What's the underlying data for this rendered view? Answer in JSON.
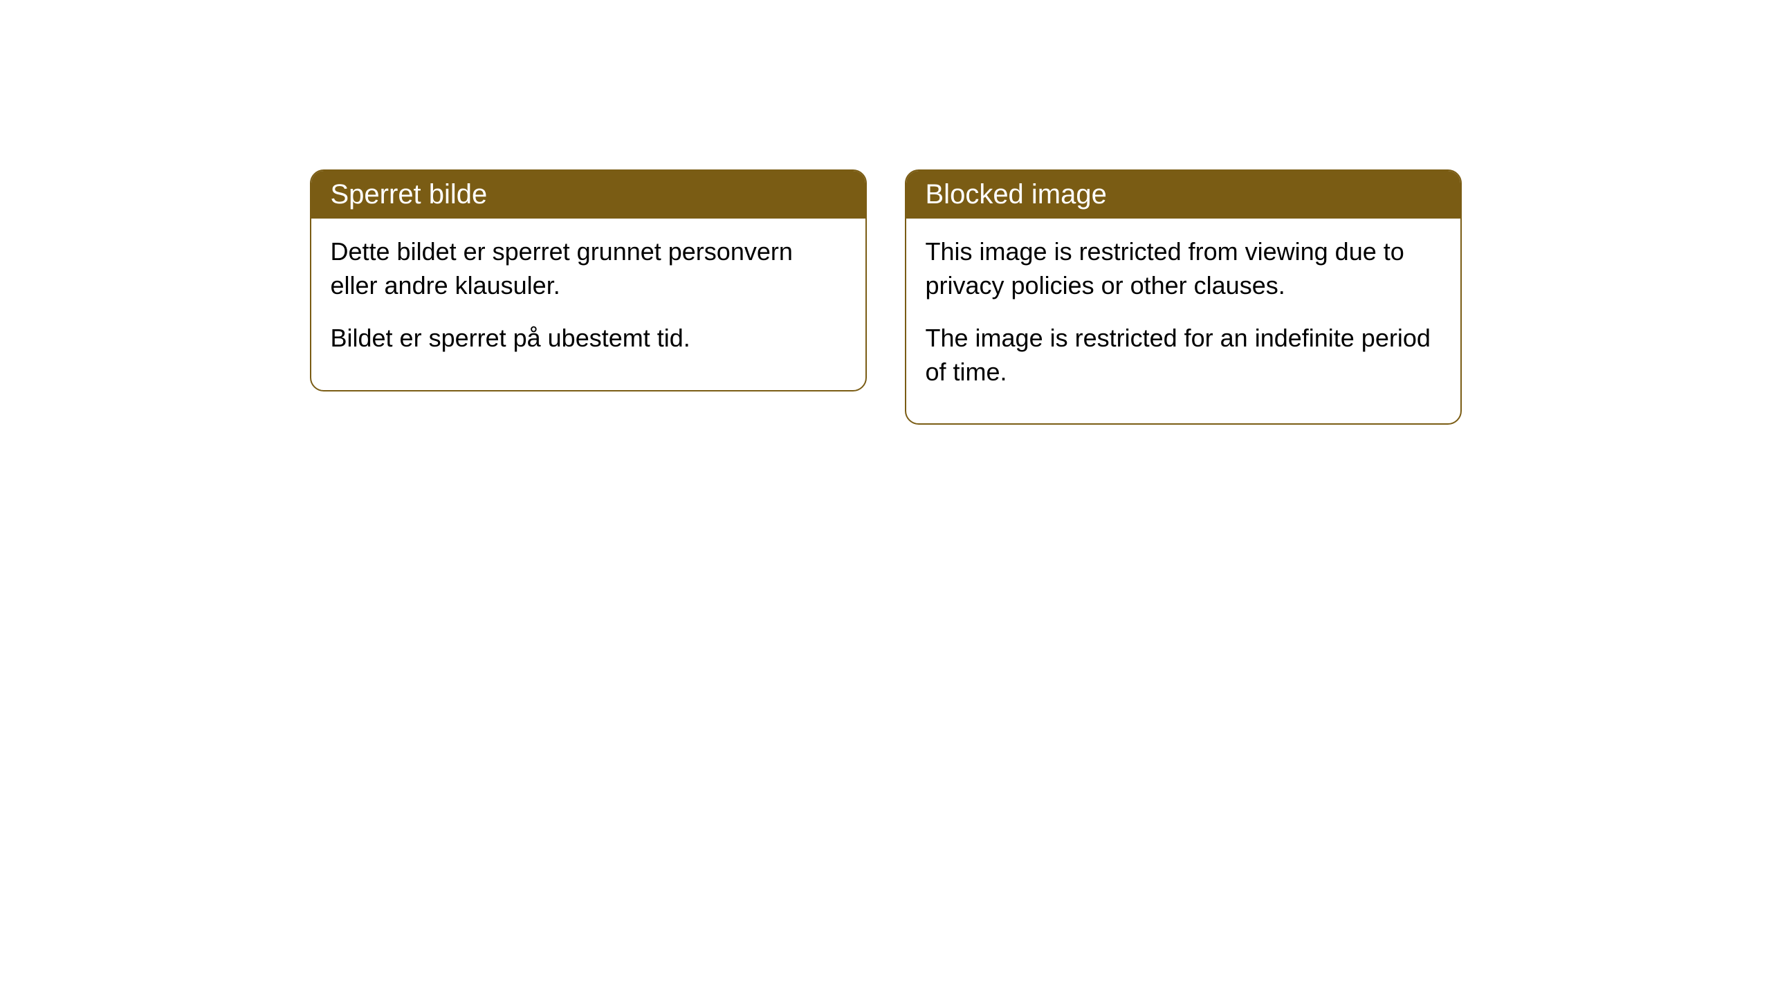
{
  "cards": [
    {
      "title": "Sperret bilde",
      "paragraph1": "Dette bildet er sperret grunnet personvern eller andre klausuler.",
      "paragraph2": "Bildet er sperret på ubestemt tid."
    },
    {
      "title": "Blocked image",
      "paragraph1": "This image is restricted from viewing due to privacy policies or other clauses.",
      "paragraph2": "The image is restricted for an indefinite period of time."
    }
  ],
  "colors": {
    "header_bg": "#7a5c14",
    "header_text": "#ffffff",
    "body_bg": "#ffffff",
    "body_text": "#000000",
    "border": "#7a5c14"
  }
}
